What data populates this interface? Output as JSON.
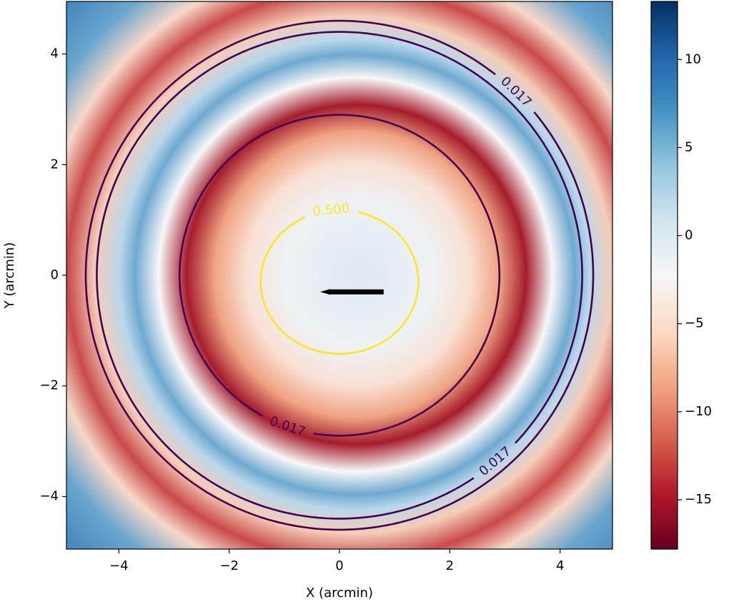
{
  "chart_data": {
    "type": "heatmap",
    "xlabel": "X (arcmin)",
    "ylabel": "Y (arcmin)",
    "xlim": [
      -4.95,
      4.95
    ],
    "ylim": [
      -4.95,
      4.95
    ],
    "xticks": [
      {
        "value": -4,
        "label": "−4"
      },
      {
        "value": -2,
        "label": "−2"
      },
      0,
      2,
      4
    ],
    "yticks": [
      {
        "value": -4,
        "label": "−4"
      },
      {
        "value": -2,
        "label": "−2"
      },
      0,
      2,
      4
    ],
    "colorbar": {
      "clim": [
        -17.8,
        13.3
      ],
      "ticks": [
        {
          "value": -15,
          "label": "−15"
        },
        {
          "value": -10,
          "label": "−10"
        },
        {
          "value": -5,
          "label": "−5"
        },
        0,
        5,
        10
      ]
    },
    "contours": [
      {
        "level": 0.5,
        "level_label": "0.500",
        "color": "#fde725",
        "cx": 0,
        "cy": -0.12,
        "rx": 1.43,
        "ry": 1.3
      },
      {
        "level": 0.017,
        "color": "#440154",
        "cx": 0,
        "cy": 0,
        "rx": 2.9,
        "ry": 2.9
      },
      {
        "level": 0.017,
        "color": "#440154",
        "cx": 0,
        "cy": 0,
        "rx": 4.6,
        "ry": 4.6
      },
      {
        "level": 0.017,
        "color": "#440154",
        "cx": 0,
        "cy": 0,
        "rx": 4.4,
        "ry": 4.4
      }
    ],
    "arrow": {
      "x": [
        0.8,
        -0.35
      ],
      "y": [
        -0.3,
        -0.3
      ],
      "color": "#000000"
    }
  }
}
